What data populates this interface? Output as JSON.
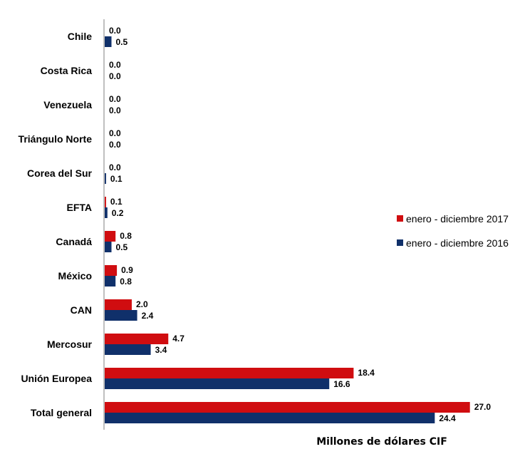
{
  "chart_data": {
    "type": "bar",
    "orientation": "horizontal",
    "categories": [
      "Chile",
      "Costa Rica",
      "Venezuela",
      "Triángulo Norte",
      "Corea del Sur",
      "EFTA",
      "Canadá",
      "México",
      "CAN",
      "Mercosur",
      "Unión Europea",
      "Total general"
    ],
    "series": [
      {
        "name": "enero - diciembre 2017",
        "color": "#d00d10",
        "values": [
          0.0,
          0.0,
          0.0,
          0.0,
          0.0,
          0.1,
          0.8,
          0.9,
          2.0,
          4.7,
          18.4,
          27.0
        ],
        "labels": [
          "0.0",
          "0.0",
          "0.0",
          "0.0",
          "0.0",
          "0.1",
          "0.8",
          "0.9",
          "2.0",
          "4.7",
          "18.4",
          "27.0"
        ]
      },
      {
        "name": "enero - diciembre 2016",
        "color": "#10306a",
        "values": [
          0.5,
          0.0,
          0.0,
          0.0,
          0.1,
          0.2,
          0.5,
          0.8,
          2.4,
          3.4,
          16.6,
          24.4
        ],
        "labels": [
          "0.5",
          "0.0",
          "0.0",
          "0.0",
          "0.1",
          "0.2",
          "0.5",
          "0.8",
          "2.4",
          "3.4",
          "16.6",
          "24.4"
        ]
      }
    ],
    "title": "",
    "xlabel": "Millones de dólares CIF",
    "ylabel": "",
    "xlim": [
      0,
      27.7
    ],
    "grid": false,
    "legend_position": "right"
  }
}
